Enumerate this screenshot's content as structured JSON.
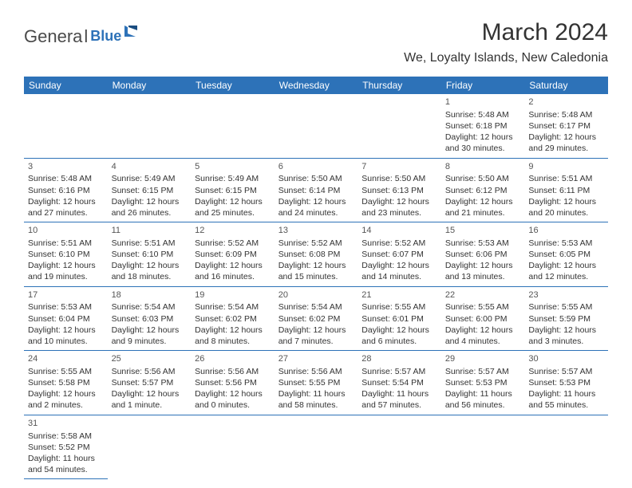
{
  "logo": {
    "main": "Genera",
    "sub": "Blue"
  },
  "title": "March 2024",
  "subtitle": "We, Loyalty Islands, New Caledonia",
  "weekdays": [
    "Sunday",
    "Monday",
    "Tuesday",
    "Wednesday",
    "Thursday",
    "Friday",
    "Saturday"
  ],
  "colors": {
    "brand": "#2d72b8",
    "background": "#ffffff",
    "text": "#333333"
  },
  "leadingBlanks": 5,
  "days": [
    {
      "n": "1",
      "sunrise": "Sunrise: 5:48 AM",
      "sunset": "Sunset: 6:18 PM",
      "d1": "Daylight: 12 hours",
      "d2": "and 30 minutes."
    },
    {
      "n": "2",
      "sunrise": "Sunrise: 5:48 AM",
      "sunset": "Sunset: 6:17 PM",
      "d1": "Daylight: 12 hours",
      "d2": "and 29 minutes."
    },
    {
      "n": "3",
      "sunrise": "Sunrise: 5:48 AM",
      "sunset": "Sunset: 6:16 PM",
      "d1": "Daylight: 12 hours",
      "d2": "and 27 minutes."
    },
    {
      "n": "4",
      "sunrise": "Sunrise: 5:49 AM",
      "sunset": "Sunset: 6:15 PM",
      "d1": "Daylight: 12 hours",
      "d2": "and 26 minutes."
    },
    {
      "n": "5",
      "sunrise": "Sunrise: 5:49 AM",
      "sunset": "Sunset: 6:15 PM",
      "d1": "Daylight: 12 hours",
      "d2": "and 25 minutes."
    },
    {
      "n": "6",
      "sunrise": "Sunrise: 5:50 AM",
      "sunset": "Sunset: 6:14 PM",
      "d1": "Daylight: 12 hours",
      "d2": "and 24 minutes."
    },
    {
      "n": "7",
      "sunrise": "Sunrise: 5:50 AM",
      "sunset": "Sunset: 6:13 PM",
      "d1": "Daylight: 12 hours",
      "d2": "and 23 minutes."
    },
    {
      "n": "8",
      "sunrise": "Sunrise: 5:50 AM",
      "sunset": "Sunset: 6:12 PM",
      "d1": "Daylight: 12 hours",
      "d2": "and 21 minutes."
    },
    {
      "n": "9",
      "sunrise": "Sunrise: 5:51 AM",
      "sunset": "Sunset: 6:11 PM",
      "d1": "Daylight: 12 hours",
      "d2": "and 20 minutes."
    },
    {
      "n": "10",
      "sunrise": "Sunrise: 5:51 AM",
      "sunset": "Sunset: 6:10 PM",
      "d1": "Daylight: 12 hours",
      "d2": "and 19 minutes."
    },
    {
      "n": "11",
      "sunrise": "Sunrise: 5:51 AM",
      "sunset": "Sunset: 6:10 PM",
      "d1": "Daylight: 12 hours",
      "d2": "and 18 minutes."
    },
    {
      "n": "12",
      "sunrise": "Sunrise: 5:52 AM",
      "sunset": "Sunset: 6:09 PM",
      "d1": "Daylight: 12 hours",
      "d2": "and 16 minutes."
    },
    {
      "n": "13",
      "sunrise": "Sunrise: 5:52 AM",
      "sunset": "Sunset: 6:08 PM",
      "d1": "Daylight: 12 hours",
      "d2": "and 15 minutes."
    },
    {
      "n": "14",
      "sunrise": "Sunrise: 5:52 AM",
      "sunset": "Sunset: 6:07 PM",
      "d1": "Daylight: 12 hours",
      "d2": "and 14 minutes."
    },
    {
      "n": "15",
      "sunrise": "Sunrise: 5:53 AM",
      "sunset": "Sunset: 6:06 PM",
      "d1": "Daylight: 12 hours",
      "d2": "and 13 minutes."
    },
    {
      "n": "16",
      "sunrise": "Sunrise: 5:53 AM",
      "sunset": "Sunset: 6:05 PM",
      "d1": "Daylight: 12 hours",
      "d2": "and 12 minutes."
    },
    {
      "n": "17",
      "sunrise": "Sunrise: 5:53 AM",
      "sunset": "Sunset: 6:04 PM",
      "d1": "Daylight: 12 hours",
      "d2": "and 10 minutes."
    },
    {
      "n": "18",
      "sunrise": "Sunrise: 5:54 AM",
      "sunset": "Sunset: 6:03 PM",
      "d1": "Daylight: 12 hours",
      "d2": "and 9 minutes."
    },
    {
      "n": "19",
      "sunrise": "Sunrise: 5:54 AM",
      "sunset": "Sunset: 6:02 PM",
      "d1": "Daylight: 12 hours",
      "d2": "and 8 minutes."
    },
    {
      "n": "20",
      "sunrise": "Sunrise: 5:54 AM",
      "sunset": "Sunset: 6:02 PM",
      "d1": "Daylight: 12 hours",
      "d2": "and 7 minutes."
    },
    {
      "n": "21",
      "sunrise": "Sunrise: 5:55 AM",
      "sunset": "Sunset: 6:01 PM",
      "d1": "Daylight: 12 hours",
      "d2": "and 6 minutes."
    },
    {
      "n": "22",
      "sunrise": "Sunrise: 5:55 AM",
      "sunset": "Sunset: 6:00 PM",
      "d1": "Daylight: 12 hours",
      "d2": "and 4 minutes."
    },
    {
      "n": "23",
      "sunrise": "Sunrise: 5:55 AM",
      "sunset": "Sunset: 5:59 PM",
      "d1": "Daylight: 12 hours",
      "d2": "and 3 minutes."
    },
    {
      "n": "24",
      "sunrise": "Sunrise: 5:55 AM",
      "sunset": "Sunset: 5:58 PM",
      "d1": "Daylight: 12 hours",
      "d2": "and 2 minutes."
    },
    {
      "n": "25",
      "sunrise": "Sunrise: 5:56 AM",
      "sunset": "Sunset: 5:57 PM",
      "d1": "Daylight: 12 hours",
      "d2": "and 1 minute."
    },
    {
      "n": "26",
      "sunrise": "Sunrise: 5:56 AM",
      "sunset": "Sunset: 5:56 PM",
      "d1": "Daylight: 12 hours",
      "d2": "and 0 minutes."
    },
    {
      "n": "27",
      "sunrise": "Sunrise: 5:56 AM",
      "sunset": "Sunset: 5:55 PM",
      "d1": "Daylight: 11 hours",
      "d2": "and 58 minutes."
    },
    {
      "n": "28",
      "sunrise": "Sunrise: 5:57 AM",
      "sunset": "Sunset: 5:54 PM",
      "d1": "Daylight: 11 hours",
      "d2": "and 57 minutes."
    },
    {
      "n": "29",
      "sunrise": "Sunrise: 5:57 AM",
      "sunset": "Sunset: 5:53 PM",
      "d1": "Daylight: 11 hours",
      "d2": "and 56 minutes."
    },
    {
      "n": "30",
      "sunrise": "Sunrise: 5:57 AM",
      "sunset": "Sunset: 5:53 PM",
      "d1": "Daylight: 11 hours",
      "d2": "and 55 minutes."
    },
    {
      "n": "31",
      "sunrise": "Sunrise: 5:58 AM",
      "sunset": "Sunset: 5:52 PM",
      "d1": "Daylight: 11 hours",
      "d2": "and 54 minutes."
    }
  ]
}
